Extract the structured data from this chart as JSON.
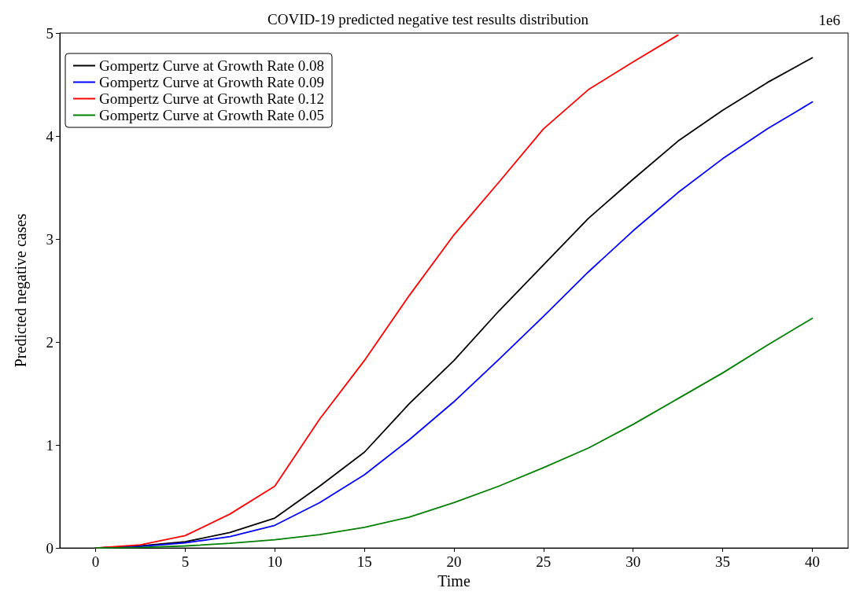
{
  "chart_data": {
    "type": "line",
    "title": "COVID-19 predicted negative test results distribution",
    "xlabel": "Time",
    "ylabel": "Predicted negative cases",
    "annotations": [
      "1e6"
    ],
    "xlim": [
      -2,
      42
    ],
    "xticks": [
      0,
      5,
      10,
      15,
      20,
      25,
      30,
      35,
      40
    ],
    "ylim": [
      0,
      5
    ],
    "yticks": [
      0,
      1,
      2,
      3,
      4,
      5
    ],
    "grid": false,
    "legend": "top left",
    "marker": "none",
    "line_style": "solid",
    "x": [
      0,
      2.5,
      5,
      7.5,
      10,
      12.5,
      15,
      17.5,
      20,
      22.5,
      25,
      27.5,
      30,
      32.5,
      35,
      37.5,
      40
    ],
    "series": [
      {
        "name": "Gompertz Curve at Growth Rate 0.08",
        "color": "#000000",
        "values": [
          0,
          0.02,
          0.06,
          0.15,
          0.29,
          0.6,
          0.93,
          1.4,
          1.82,
          2.3,
          2.75,
          3.2,
          3.58,
          3.95,
          4.25,
          4.52,
          4.76
        ]
      },
      {
        "name": "Gompertz Curve at Growth Rate 0.09",
        "color": "#0000ff",
        "values": [
          0,
          0.015,
          0.05,
          0.11,
          0.22,
          0.44,
          0.71,
          1.05,
          1.42,
          1.83,
          2.25,
          2.68,
          3.08,
          3.45,
          3.78,
          4.07,
          4.33
        ]
      },
      {
        "name": "Gompertz Curve at Growth Rate 0.12",
        "color": "#ff0000",
        "values": [
          0,
          0.03,
          0.12,
          0.33,
          0.6,
          1.25,
          1.82,
          2.45,
          3.04,
          3.55,
          4.07,
          4.45,
          4.72,
          4.98,
          null,
          null,
          null
        ]
      },
      {
        "name": "Gompertz Curve at Growth Rate 0.05",
        "color": "#008000",
        "values": [
          0,
          0.005,
          0.02,
          0.045,
          0.08,
          0.13,
          0.2,
          0.3,
          0.44,
          0.6,
          0.78,
          0.97,
          1.2,
          1.45,
          1.7,
          1.97,
          2.23
        ]
      }
    ]
  }
}
